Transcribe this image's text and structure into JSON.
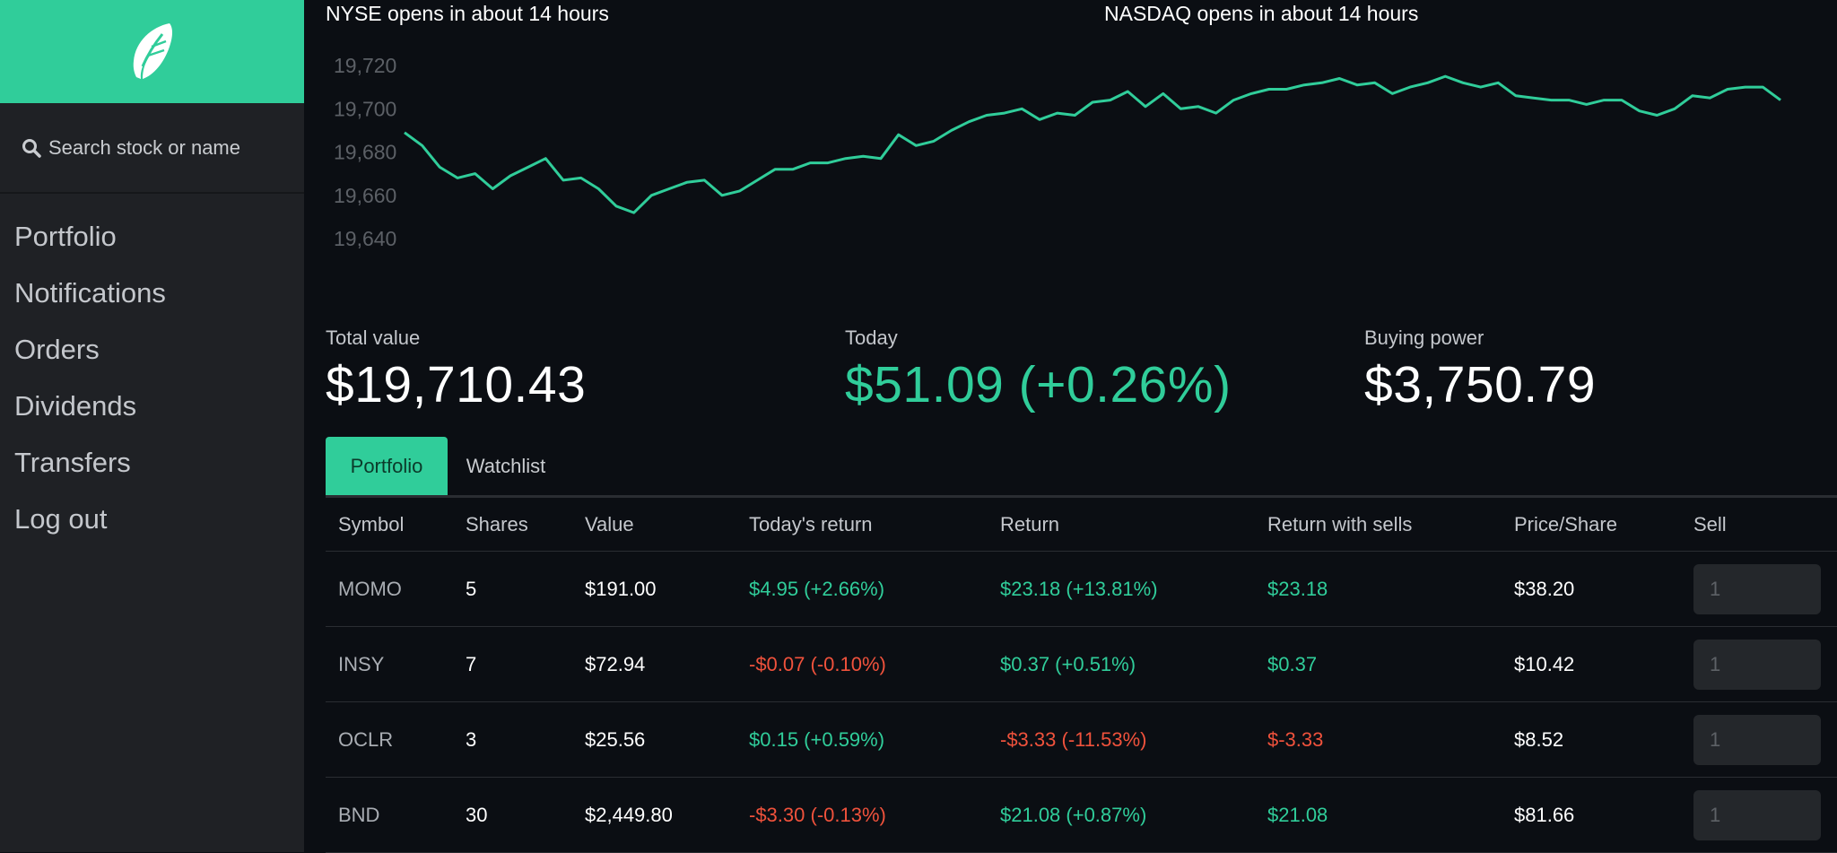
{
  "colors": {
    "brand": "#30cd9a",
    "negative": "#f0523c",
    "sidebar_bg": "#1f2125",
    "main_bg": "#0b0e13"
  },
  "sidebar": {
    "logo_icon": "feather-icon",
    "search": {
      "icon": "search-icon",
      "label": "Search stock or name"
    },
    "nav": [
      {
        "label": "Portfolio"
      },
      {
        "label": "Notifications"
      },
      {
        "label": "Orders"
      },
      {
        "label": "Dividends"
      },
      {
        "label": "Transfers"
      },
      {
        "label": "Log out"
      }
    ]
  },
  "market": {
    "nyse": "NYSE opens in about 14 hours",
    "nasdaq": "NASDAQ opens in about 14 hours"
  },
  "chart_data": {
    "type": "line",
    "title": "",
    "xlabel": "",
    "ylabel": "",
    "ylim": [
      19630,
      19735
    ],
    "yticks": [
      19640,
      19660,
      19680,
      19700,
      19720
    ],
    "ytick_labels": [
      "19,640",
      "19,660",
      "19,680",
      "19,700",
      "19,720"
    ],
    "grid": false,
    "color": "#30cd9a",
    "values": [
      19689,
      19683,
      19673,
      19668,
      19670,
      19663,
      19669,
      19673,
      19677,
      19667,
      19668,
      19663,
      19655,
      19652,
      19660,
      19663,
      19666,
      19667,
      19660,
      19662,
      19667,
      19672,
      19672,
      19675,
      19675,
      19677,
      19678,
      19677,
      19688,
      19683,
      19685,
      19690,
      19694,
      19697,
      19698,
      19700,
      19695,
      19698,
      19697,
      19703,
      19704,
      19708,
      19701,
      19707,
      19700,
      19701,
      19698,
      19704,
      19707,
      19709,
      19709,
      19711,
      19712,
      19714,
      19711,
      19712,
      19707,
      19710,
      19712,
      19715,
      19712,
      19710,
      19712,
      19706,
      19705,
      19704,
      19704,
      19702,
      19704,
      19704,
      19699,
      19697,
      19700,
      19706,
      19705,
      19709,
      19710,
      19710,
      19704
    ]
  },
  "summary": {
    "total_label": "Total value",
    "total_value": "$19,710.43",
    "today_label": "Today",
    "today_value": "$51.09 (+0.26%)",
    "buying_label": "Buying power",
    "buying_value": "$3,750.79"
  },
  "tabs": [
    {
      "label": "Portfolio",
      "active": true
    },
    {
      "label": "Watchlist",
      "active": false
    }
  ],
  "table": {
    "headers": [
      "Symbol",
      "Shares",
      "Value",
      "Today's return",
      "Return",
      "Return with sells",
      "Price/Share",
      "Sell"
    ],
    "rows": [
      {
        "symbol": "MOMO",
        "shares": "5",
        "value": "$191.00",
        "today": "$4.95 (+2.66%)",
        "today_sign": "pos",
        "ret": "$23.18 (+13.81%)",
        "ret_sign": "pos",
        "sells": "$23.18",
        "sells_sign": "pos",
        "price": "$38.20",
        "sell_placeholder": "1"
      },
      {
        "symbol": "INSY",
        "shares": "7",
        "value": "$72.94",
        "today": "-$0.07 (-0.10%)",
        "today_sign": "neg",
        "ret": "$0.37 (+0.51%)",
        "ret_sign": "pos",
        "sells": "$0.37",
        "sells_sign": "pos",
        "price": "$10.42",
        "sell_placeholder": "1"
      },
      {
        "symbol": "OCLR",
        "shares": "3",
        "value": "$25.56",
        "today": "$0.15 (+0.59%)",
        "today_sign": "pos",
        "ret": "-$3.33 (-11.53%)",
        "ret_sign": "neg",
        "sells": "$-3.33",
        "sells_sign": "neg",
        "price": "$8.52",
        "sell_placeholder": "1"
      },
      {
        "symbol": "BND",
        "shares": "30",
        "value": "$2,449.80",
        "today": "-$3.30 (-0.13%)",
        "today_sign": "neg",
        "ret": "$21.08 (+0.87%)",
        "ret_sign": "pos",
        "sells": "$21.08",
        "sells_sign": "pos",
        "price": "$81.66",
        "sell_placeholder": "1"
      }
    ]
  }
}
